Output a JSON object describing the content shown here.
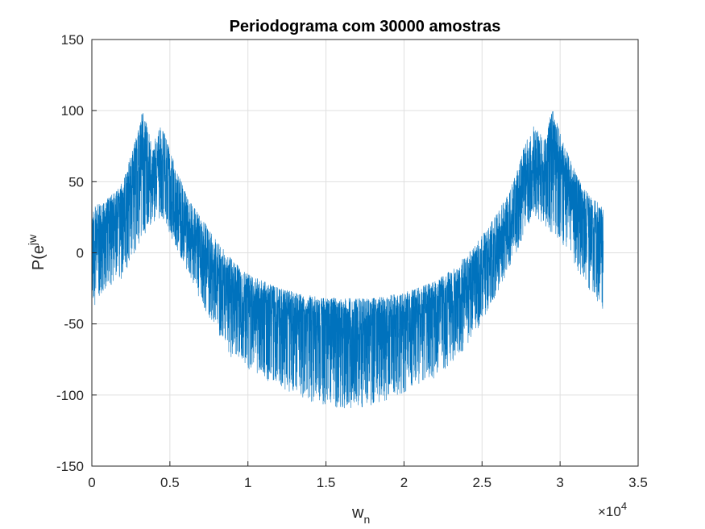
{
  "chart_data": {
    "type": "line",
    "title": "Periodograma com 30000 amostras",
    "xlabel": "w",
    "xlabel_sub": "n",
    "ylabel": "P(e",
    "ylabel_sup": "jw",
    "x_exponent_label": "×10",
    "x_exponent": "4",
    "xlim": [
      0,
      35000
    ],
    "ylim": [
      -150,
      150
    ],
    "x_ticks": [
      0,
      5000,
      10000,
      15000,
      20000,
      25000,
      30000,
      35000
    ],
    "x_tick_labels": [
      "0",
      "0.5",
      "1",
      "1.5",
      "2",
      "2.5",
      "3",
      "3.5"
    ],
    "y_ticks": [
      -150,
      -100,
      -50,
      0,
      50,
      100,
      150
    ],
    "y_tick_labels": [
      "-150",
      "-100",
      "-50",
      "0",
      "50",
      "100",
      "150"
    ],
    "grid": true,
    "line_color": "#0072BD",
    "series": [
      {
        "x_range": [
          1,
          32768
        ],
        "envelope": [
          {
            "x": 0,
            "low": -40,
            "high": 32,
            "center": 15
          },
          {
            "x": 1000,
            "low": -25,
            "high": 38,
            "center": 20
          },
          {
            "x": 2000,
            "low": -18,
            "high": 50,
            "center": 32
          },
          {
            "x": 3000,
            "low": 5,
            "high": 88,
            "center": 60
          },
          {
            "x": 3270,
            "low": 10,
            "high": 101,
            "center": 70
          },
          {
            "x": 3800,
            "low": 20,
            "high": 78,
            "center": 58
          },
          {
            "x": 4500,
            "low": 25,
            "high": 90,
            "center": 65
          },
          {
            "x": 5000,
            "low": 12,
            "high": 72,
            "center": 45
          },
          {
            "x": 6000,
            "low": -10,
            "high": 42,
            "center": 18
          },
          {
            "x": 7000,
            "low": -35,
            "high": 25,
            "center": 0
          },
          {
            "x": 8000,
            "low": -55,
            "high": 8,
            "center": -15
          },
          {
            "x": 9000,
            "low": -75,
            "high": -5,
            "center": -28
          },
          {
            "x": 10000,
            "low": -82,
            "high": -15,
            "center": -36
          },
          {
            "x": 12000,
            "low": -95,
            "high": -25,
            "center": -45
          },
          {
            "x": 14000,
            "low": -105,
            "high": -30,
            "center": -50
          },
          {
            "x": 16000,
            "low": -110,
            "high": -32,
            "center": -52
          },
          {
            "x": 18000,
            "low": -108,
            "high": -32,
            "center": -51
          },
          {
            "x": 20000,
            "low": -100,
            "high": -28,
            "center": -47
          },
          {
            "x": 22000,
            "low": -88,
            "high": -20,
            "center": -40
          },
          {
            "x": 23000,
            "low": -78,
            "high": -12,
            "center": -33
          },
          {
            "x": 24000,
            "low": -68,
            "high": -2,
            "center": -24
          },
          {
            "x": 25000,
            "low": -48,
            "high": 12,
            "center": -10
          },
          {
            "x": 26000,
            "low": -28,
            "high": 28,
            "center": 5
          },
          {
            "x": 27000,
            "low": -5,
            "high": 50,
            "center": 25
          },
          {
            "x": 28000,
            "low": 20,
            "high": 85,
            "center": 55
          },
          {
            "x": 28300,
            "low": 25,
            "high": 90,
            "center": 62
          },
          {
            "x": 29000,
            "low": 20,
            "high": 80,
            "center": 58
          },
          {
            "x": 29500,
            "low": 10,
            "high": 101,
            "center": 70
          },
          {
            "x": 30500,
            "low": 0,
            "high": 70,
            "center": 45
          },
          {
            "x": 31500,
            "low": -20,
            "high": 45,
            "center": 25
          },
          {
            "x": 32768,
            "low": -40,
            "high": 32,
            "center": 15
          }
        ]
      }
    ]
  }
}
